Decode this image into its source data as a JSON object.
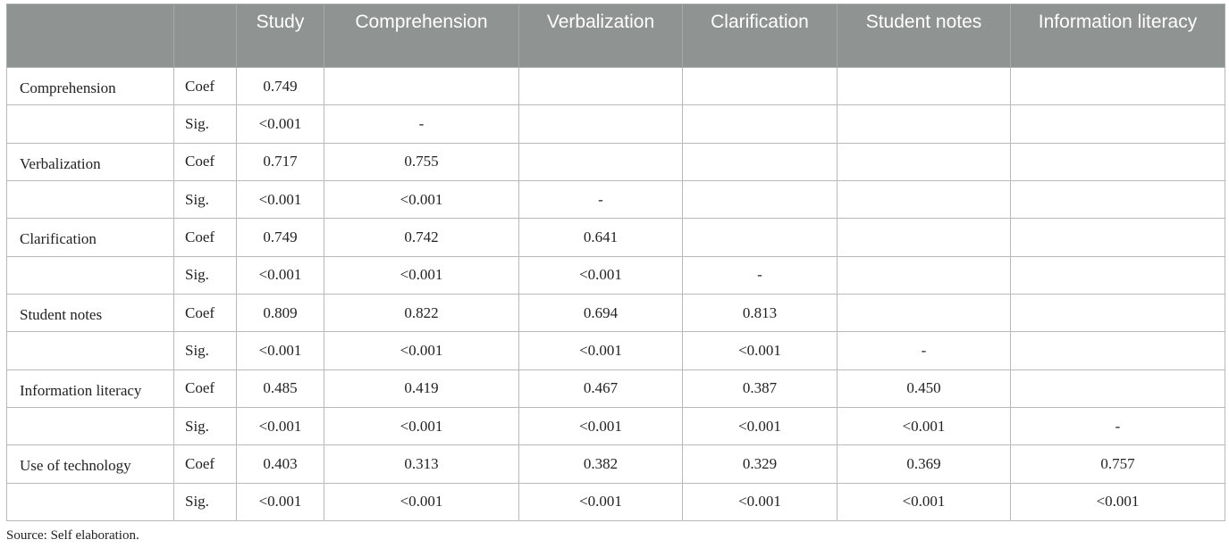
{
  "table": {
    "header": [
      "",
      "",
      "Study",
      "Comprehension",
      "Verbalization",
      "Clarification",
      "Student notes",
      "Information literacy"
    ],
    "rows": [
      {
        "variable": "Comprehension",
        "stat": "Coef",
        "values": [
          "0.749",
          "",
          "",
          "",
          "",
          ""
        ]
      },
      {
        "variable": "",
        "stat": "Sig.",
        "values": [
          "<0.001",
          "-",
          "",
          "",
          "",
          ""
        ]
      },
      {
        "variable": "Verbalization",
        "stat": "Coef",
        "values": [
          "0.717",
          "0.755",
          "",
          "",
          "",
          ""
        ]
      },
      {
        "variable": "",
        "stat": "Sig.",
        "values": [
          "<0.001",
          "<0.001",
          "-",
          "",
          "",
          ""
        ]
      },
      {
        "variable": "Clarification",
        "stat": "Coef",
        "values": [
          "0.749",
          "0.742",
          "0.641",
          "",
          "",
          ""
        ]
      },
      {
        "variable": "",
        "stat": "Sig.",
        "values": [
          "<0.001",
          "<0.001",
          "<0.001",
          "-",
          "",
          ""
        ]
      },
      {
        "variable": "Student notes",
        "stat": "Coef",
        "values": [
          "0.809",
          "0.822",
          "0.694",
          "0.813",
          "",
          ""
        ]
      },
      {
        "variable": "",
        "stat": "Sig.",
        "values": [
          "<0.001",
          "<0.001",
          "<0.001",
          "<0.001",
          "-",
          ""
        ]
      },
      {
        "variable": "Information literacy",
        "stat": "Coef",
        "values": [
          "0.485",
          "0.419",
          "0.467",
          "0.387",
          "0.450",
          ""
        ]
      },
      {
        "variable": "",
        "stat": "Sig.",
        "values": [
          "<0.001",
          "<0.001",
          "<0.001",
          "<0.001",
          "<0.001",
          "-"
        ]
      },
      {
        "variable": "Use of technology",
        "stat": "Coef",
        "values": [
          "0.403",
          "0.313",
          "0.382",
          "0.329",
          "0.369",
          "0.757"
        ]
      },
      {
        "variable": "",
        "stat": "Sig.",
        "values": [
          "<0.001",
          "<0.001",
          "<0.001",
          "<0.001",
          "<0.001",
          "<0.001"
        ]
      }
    ]
  },
  "source": "Source: Self elaboration."
}
